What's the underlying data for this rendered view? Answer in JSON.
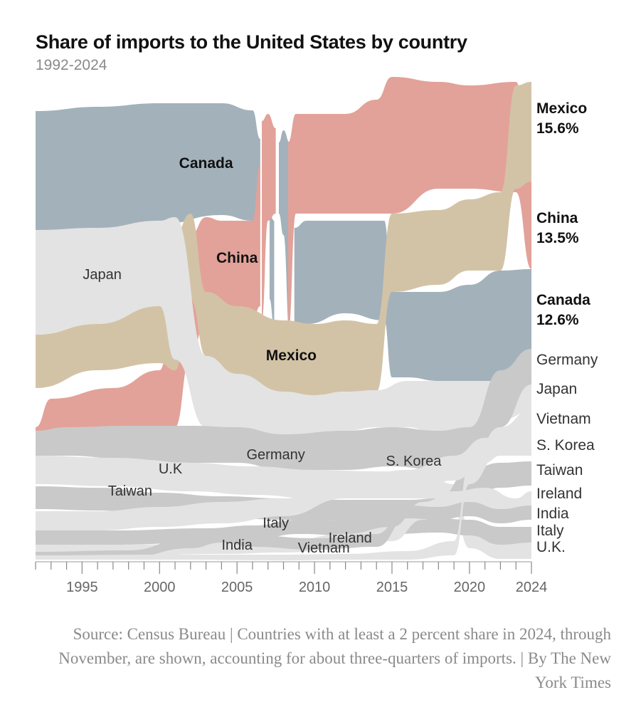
{
  "title": "Share of imports to the United States by country",
  "subtitle": "1992-2024",
  "footer": "Source: Census Bureau | Countries with at least a 2 percent share in 2024, through November, are shown, accounting for about three-quarters of imports. | By The New York Times",
  "chart_data": {
    "type": "area",
    "subtype": "ranked stream (bump area) chart",
    "xlim": [
      1992,
      2024
    ],
    "x_ticks": [
      1995,
      2000,
      2005,
      2010,
      2015,
      2020,
      2024
    ],
    "colors": {
      "Canada": "#a3b1ba",
      "China": "#e2a299",
      "Mexico": "#d3c3a6",
      "other": "#c9c9c9",
      "other_alt": "#e3e3e3"
    },
    "ending_order_top_to_bottom": [
      "Mexico",
      "China",
      "Canada",
      "Germany",
      "Japan",
      "Vietnam",
      "S. Korea",
      "Taiwan",
      "Ireland",
      "India",
      "Italy",
      "U.K."
    ],
    "end_labels": [
      {
        "country": "Mexico",
        "value": "15.6%",
        "highlight": true
      },
      {
        "country": "China",
        "value": "13.5%",
        "highlight": true
      },
      {
        "country": "Canada",
        "value": "12.6%",
        "highlight": true
      },
      {
        "country": "Germany",
        "highlight": false
      },
      {
        "country": "Japan",
        "highlight": false
      },
      {
        "country": "Vietnam",
        "highlight": false
      },
      {
        "country": "S. Korea",
        "highlight": false
      },
      {
        "country": "Taiwan",
        "highlight": false
      },
      {
        "country": "Ireland",
        "highlight": false
      },
      {
        "country": "India",
        "highlight": false
      },
      {
        "country": "Italy",
        "highlight": false
      },
      {
        "country": "U.K.",
        "highlight": false
      }
    ],
    "inline_labels": [
      {
        "text": "Canada",
        "year": 2003,
        "highlight": true
      },
      {
        "text": "China",
        "year": 2005,
        "highlight": true
      },
      {
        "text": "Mexico",
        "year": 2008.5,
        "highlight": true
      },
      {
        "text": "Japan",
        "year": 1996.3,
        "highlight": false
      },
      {
        "text": "Germany",
        "year": 2007.5,
        "highlight": false
      },
      {
        "text": "S. Korea",
        "year": 2016.4,
        "highlight": false
      },
      {
        "text": "U.K",
        "year": 2000.7,
        "highlight": false
      },
      {
        "text": "Taiwan",
        "year": 1998.1,
        "highlight": false
      },
      {
        "text": "Italy",
        "year": 2007.5,
        "highlight": false
      },
      {
        "text": "Ireland",
        "year": 2012.3,
        "highlight": false
      },
      {
        "text": "India",
        "year": 2005.0,
        "highlight": false
      },
      {
        "text": "Vietnam",
        "year": 2010.6,
        "highlight": false
      }
    ],
    "bands": [
      {
        "name": "Canada",
        "color": "Canada",
        "pts": [
          [
            1992,
            156,
            323
          ],
          [
            1996,
            150,
            323
          ],
          [
            2000,
            145,
            315
          ],
          [
            2004,
            145,
            302
          ],
          [
            2006,
            155,
            310
          ],
          [
            2006.5,
            195,
            305
          ]
        ]
      },
      {
        "name": "Canada",
        "color": "Canada",
        "pts": [
          [
            2007.7,
            200,
            300
          ],
          [
            2008,
            183,
            330
          ],
          [
            2008.4,
            200,
            470
          ]
        ]
      },
      {
        "name": "Canada",
        "color": "Canada",
        "pts": [
          [
            2007.1,
            300,
            420
          ],
          [
            2007.4,
            310,
            460
          ]
        ]
      },
      {
        "name": "Canada",
        "color": "Canada",
        "pts": [
          [
            2008.7,
            320,
            470
          ],
          [
            2009.5,
            310,
            455
          ],
          [
            2012,
            310,
            440
          ],
          [
            2014.5,
            310,
            450
          ],
          [
            2015,
            410,
            530
          ],
          [
            2016,
            410,
            530
          ],
          [
            2018,
            410,
            535
          ],
          [
            2020,
            400,
            535
          ],
          [
            2022,
            380,
            540
          ],
          [
            2024,
            378,
            540
          ]
        ]
      },
      {
        "name": "China",
        "color": "China",
        "pts": [
          [
            1992,
            600,
            640
          ],
          [
            1993,
            560,
            615
          ],
          [
            1997,
            545,
            605
          ],
          [
            2000,
            520,
            600
          ],
          [
            2001,
            420,
            600
          ],
          [
            2002,
            330,
            500
          ],
          [
            2003,
            305,
            450
          ],
          [
            2004,
            310,
            440
          ],
          [
            2006,
            310,
            450
          ],
          [
            2006.5,
            230,
            430
          ]
        ]
      },
      {
        "name": "China",
        "color": "China",
        "pts": [
          [
            2006.6,
            170,
            450
          ],
          [
            2007.0,
            160,
            310
          ],
          [
            2007.5,
            180,
            300
          ]
        ]
      },
      {
        "name": "China",
        "color": "China",
        "pts": [
          [
            2008.3,
            200,
            470
          ],
          [
            2008.8,
            160,
            300
          ],
          [
            2012,
            160,
            300
          ],
          [
            2014,
            140,
            300
          ],
          [
            2015,
            108,
            300
          ],
          [
            2018,
            115,
            265
          ],
          [
            2020,
            120,
            265
          ],
          [
            2023,
            115,
            270
          ],
          [
            2024,
            255,
            378
          ]
        ]
      },
      {
        "name": "Mexico",
        "color": "Mexico",
        "pts": [
          [
            1992,
            470,
            545
          ],
          [
            1996,
            455,
            520
          ],
          [
            2000,
            425,
            510
          ],
          [
            2001,
            330,
            520
          ],
          [
            2002,
            300,
            420
          ],
          [
            2003,
            410,
            500
          ],
          [
            2005,
            430,
            540
          ],
          [
            2008,
            450,
            555
          ],
          [
            2010,
            455,
            555
          ],
          [
            2012,
            450,
            550
          ],
          [
            2014,
            455,
            550
          ],
          [
            2015,
            300,
            410
          ],
          [
            2018,
            295,
            400
          ],
          [
            2020,
            280,
            380
          ],
          [
            2022,
            270,
            380
          ],
          [
            2023,
            120,
            265
          ],
          [
            2024,
            115,
            255
          ]
        ]
      },
      {
        "name": "Japan",
        "color": "other_alt",
        "pts": [
          [
            1992,
            323,
            470
          ],
          [
            1996,
            320,
            455
          ],
          [
            2000,
            310,
            430
          ],
          [
            2001,
            305,
            505
          ],
          [
            2003,
            500,
            600
          ],
          [
            2005,
            525,
            608
          ],
          [
            2008,
            550,
            615
          ],
          [
            2010,
            555,
            610
          ],
          [
            2012,
            550,
            605
          ],
          [
            2014,
            548,
            600
          ],
          [
            2016,
            535,
            600
          ],
          [
            2018,
            535,
            610
          ],
          [
            2020,
            535,
            600
          ],
          [
            2022,
            535,
            590
          ],
          [
            2024,
            538,
            578
          ]
        ]
      },
      {
        "name": "Germany",
        "color": "other",
        "pts": [
          [
            1992,
            605,
            640
          ],
          [
            1994,
            600,
            640
          ],
          [
            1998,
            598,
            645
          ],
          [
            2002,
            598,
            650
          ],
          [
            2005,
            600,
            650
          ],
          [
            2008,
            610,
            660
          ],
          [
            2012,
            605,
            660
          ],
          [
            2015,
            600,
            655
          ],
          [
            2018,
            605,
            660
          ],
          [
            2020,
            600,
            650
          ],
          [
            2022,
            520,
            600
          ],
          [
            2024,
            490,
            540
          ]
        ]
      },
      {
        "name": "U.K.",
        "color": "other_alt",
        "pts": [
          [
            1992,
            640,
            680
          ],
          [
            1997,
            643,
            683
          ],
          [
            2002,
            650,
            690
          ],
          [
            2006,
            655,
            695
          ],
          [
            2010,
            660,
            700
          ],
          [
            2014,
            662,
            700
          ],
          [
            2017,
            662,
            700
          ],
          [
            2019,
            680,
            720
          ],
          [
            2020,
            740,
            770
          ],
          [
            2022,
            760,
            785
          ],
          [
            2024,
            762,
            785
          ]
        ]
      },
      {
        "name": "Taiwan",
        "color": "other",
        "pts": [
          [
            1992,
            683,
            715
          ],
          [
            1996,
            685,
            717
          ],
          [
            2000,
            692,
            722
          ],
          [
            2004,
            697,
            727
          ],
          [
            2008,
            700,
            730
          ],
          [
            2012,
            702,
            732
          ],
          [
            2016,
            702,
            735
          ],
          [
            2018,
            700,
            730
          ],
          [
            2020,
            660,
            700
          ],
          [
            2022,
            650,
            685
          ],
          [
            2024,
            648,
            682
          ]
        ]
      },
      {
        "name": "S. Korea",
        "color": "other_alt",
        "pts": [
          [
            1992,
            718,
            745
          ],
          [
            1996,
            718,
            745
          ],
          [
            2000,
            712,
            740
          ],
          [
            2004,
            705,
            735
          ],
          [
            2008,
            700,
            725
          ],
          [
            2012,
            675,
            700
          ],
          [
            2016,
            660,
            690
          ],
          [
            2019,
            640,
            675
          ],
          [
            2021,
            615,
            650
          ],
          [
            2022,
            608,
            640
          ],
          [
            2024,
            600,
            640
          ]
        ]
      },
      {
        "name": "Italy",
        "color": "other",
        "pts": [
          [
            1992,
            745,
            765
          ],
          [
            1997,
            745,
            765
          ],
          [
            2003,
            742,
            762
          ],
          [
            2006,
            738,
            758
          ],
          [
            2009,
            730,
            750
          ],
          [
            2012,
            732,
            752
          ],
          [
            2015,
            730,
            750
          ],
          [
            2018,
            728,
            748
          ],
          [
            2020,
            730,
            752
          ],
          [
            2022,
            740,
            765
          ],
          [
            2024,
            740,
            762
          ]
        ]
      },
      {
        "name": "Ireland",
        "color": "other_alt",
        "pts": [
          [
            1992,
            765,
            780
          ],
          [
            1998,
            765,
            780
          ],
          [
            2004,
            762,
            778
          ],
          [
            2008,
            760,
            776
          ],
          [
            2012,
            750,
            770
          ],
          [
            2015,
            740,
            760
          ],
          [
            2017,
            705,
            730
          ],
          [
            2019,
            690,
            720
          ],
          [
            2021,
            685,
            715
          ],
          [
            2023,
            700,
            725
          ],
          [
            2024,
            690,
            715
          ]
        ]
      },
      {
        "name": "India",
        "color": "other",
        "pts": [
          [
            1992,
            775,
            785
          ],
          [
            1998,
            773,
            783
          ],
          [
            2002,
            755,
            770
          ],
          [
            2004,
            745,
            762
          ],
          [
            2006,
            752,
            768
          ],
          [
            2010,
            756,
            772
          ],
          [
            2014,
            750,
            768
          ],
          [
            2016,
            710,
            728
          ],
          [
            2018,
            712,
            730
          ],
          [
            2020,
            705,
            725
          ],
          [
            2022,
            715,
            735
          ],
          [
            2024,
            710,
            730
          ]
        ]
      },
      {
        "name": "Vietnam",
        "color": "other_alt",
        "pts": [
          [
            1992,
            780,
            786
          ],
          [
            2000,
            779,
            786
          ],
          [
            2008,
            779,
            787
          ],
          [
            2012,
            778,
            786
          ],
          [
            2016,
            774,
            786
          ],
          [
            2019,
            760,
            780
          ],
          [
            2020,
            650,
            680
          ],
          [
            2022,
            600,
            635
          ],
          [
            2024,
            575,
            610
          ]
        ]
      }
    ]
  }
}
